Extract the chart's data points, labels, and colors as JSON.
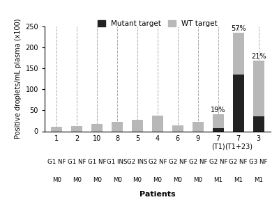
{
  "categories": [
    "1",
    "2",
    "10",
    "8",
    "5",
    "4",
    "6",
    "9",
    "7\n(T1)",
    "7\n(T1+23)",
    "3"
  ],
  "line1_labels": [
    "G1 NF",
    "G1 NF",
    "G1 NF",
    "G1 INS",
    "G2 INS",
    "G2 NF",
    "G2 NF",
    "G2 NF",
    "G2 NF",
    "G2 NF",
    "G3 NF"
  ],
  "line2_labels": [
    "M0",
    "M0",
    "M0",
    "M0",
    "M0",
    "M0",
    "M0",
    "M0",
    "M1",
    "M1",
    "M1"
  ],
  "wt_values": [
    10,
    12,
    17,
    22,
    28,
    37,
    14,
    23,
    32,
    100,
    133
  ],
  "mut_values": [
    0,
    0,
    0,
    0,
    0,
    0,
    0,
    0,
    8,
    135,
    35
  ],
  "wt_color": "#b8b8b8",
  "mut_color": "#222222",
  "ylabel": "Positive droplets/mL plasma (x100)",
  "xlabel": "Patients",
  "legend_mutant": "Mutant target",
  "legend_wt": "WT target",
  "ylim": [
    0,
    250
  ],
  "yticks": [
    0,
    50,
    100,
    150,
    200,
    250
  ],
  "annotations": [
    {
      "bar_idx": 8,
      "text": "19%",
      "y": 42
    },
    {
      "bar_idx": 9,
      "text": "57%",
      "y": 237
    },
    {
      "bar_idx": 10,
      "text": "21%",
      "y": 170
    }
  ],
  "figsize": [
    4.0,
    2.9
  ],
  "dpi": 100
}
